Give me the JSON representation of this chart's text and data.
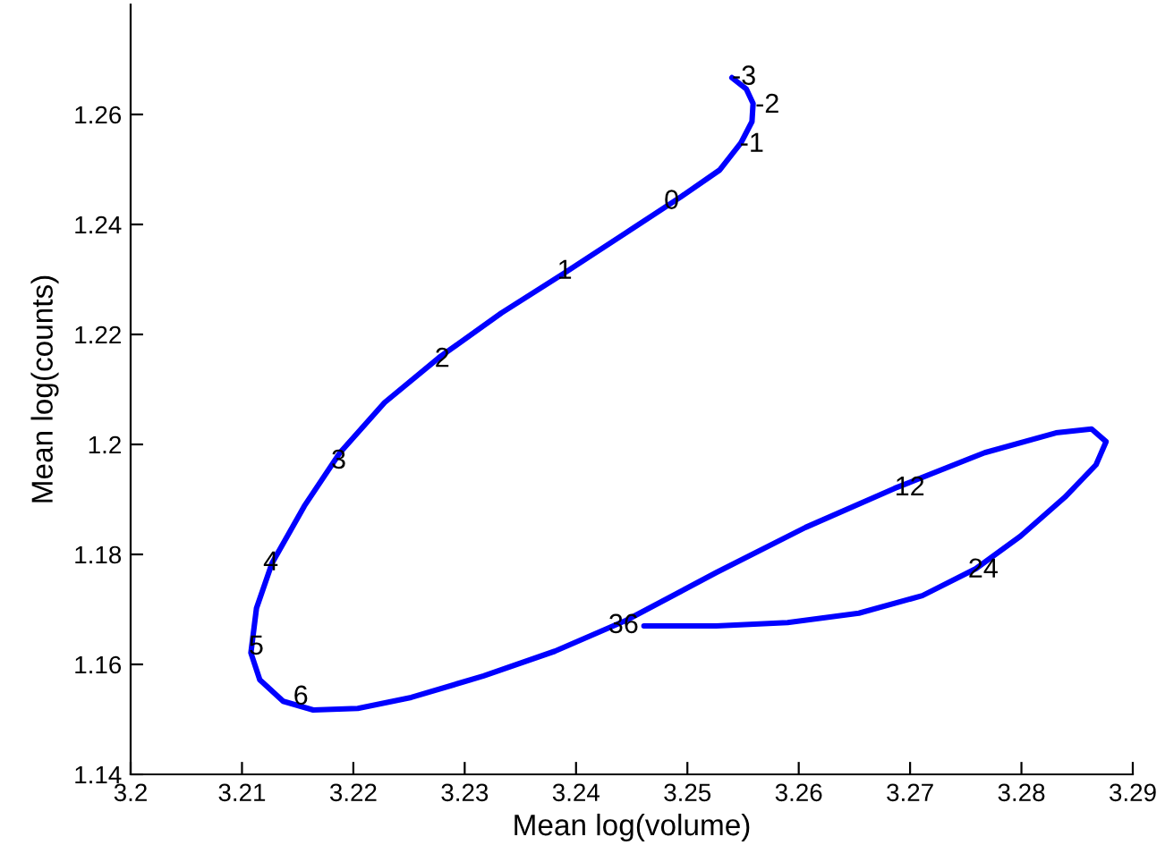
{
  "chart_data": {
    "type": "line",
    "xlabel": "Mean log(volume)",
    "ylabel": "Mean log(counts)",
    "series": [
      {
        "color": "#0000ff",
        "x": [
          3.254,
          3.2553,
          3.2559,
          3.2558,
          3.2548,
          3.2529,
          3.2494,
          3.2445,
          3.2389,
          3.2333,
          3.2277,
          3.2228,
          3.2188,
          3.2156,
          3.2127,
          3.2113,
          3.2108,
          3.2116,
          3.2137,
          3.2164,
          3.2204,
          3.2252,
          3.2317,
          3.2381,
          3.2445,
          3.2526,
          3.2606,
          3.2686,
          3.2767,
          3.2831,
          3.2863,
          3.2876,
          3.2867,
          3.2839,
          3.2799,
          3.2759,
          3.2711,
          3.2654,
          3.259,
          3.2526,
          3.2461
        ],
        "values": [
          1.2667,
          1.2646,
          1.262,
          1.2587,
          1.2548,
          1.2499,
          1.245,
          1.2385,
          1.2311,
          1.2239,
          1.2158,
          1.2076,
          1.1985,
          1.1888,
          1.1784,
          1.1702,
          1.1621,
          1.1572,
          1.1533,
          1.1517,
          1.152,
          1.154,
          1.1579,
          1.1624,
          1.168,
          1.1767,
          1.1849,
          1.192,
          1.1985,
          1.2021,
          1.2028,
          1.2005,
          1.1963,
          1.1904,
          1.1833,
          1.1774,
          1.1725,
          1.1693,
          1.1676,
          1.167,
          1.167
        ]
      }
    ],
    "xlim": [
      3.2,
      3.29
    ],
    "xticks": [
      3.2,
      3.21,
      3.22,
      3.23,
      3.24,
      3.25,
      3.26,
      3.27,
      3.28,
      3.29
    ],
    "ylim": [
      1.14,
      1.28
    ],
    "yticks": [
      1.14,
      1.16,
      1.18,
      1.2,
      1.22,
      1.24,
      1.26
    ],
    "grid": false,
    "marker": "none",
    "line_style": "solid",
    "annotations": [
      {
        "text": "-3",
        "x": 3.254,
        "y": 1.2667
      },
      {
        "text": "-2",
        "x": 3.2561,
        "y": 1.2616
      },
      {
        "text": "-1",
        "x": 3.2547,
        "y": 1.2545
      },
      {
        "text": "0",
        "x": 3.2479,
        "y": 1.2441
      },
      {
        "text": "1",
        "x": 3.2383,
        "y": 1.2314
      },
      {
        "text": "2",
        "x": 3.2273,
        "y": 1.2154
      },
      {
        "text": "3",
        "x": 3.218,
        "y": 1.1969
      },
      {
        "text": "4",
        "x": 3.2119,
        "y": 1.1784
      },
      {
        "text": "5",
        "x": 3.2106,
        "y": 1.1631
      },
      {
        "text": "6",
        "x": 3.2146,
        "y": 1.154
      },
      {
        "text": "12",
        "x": 3.2686,
        "y": 1.192
      },
      {
        "text": "24",
        "x": 3.2752,
        "y": 1.1771
      },
      {
        "text": "36",
        "x": 3.2429,
        "y": 1.167
      }
    ]
  }
}
